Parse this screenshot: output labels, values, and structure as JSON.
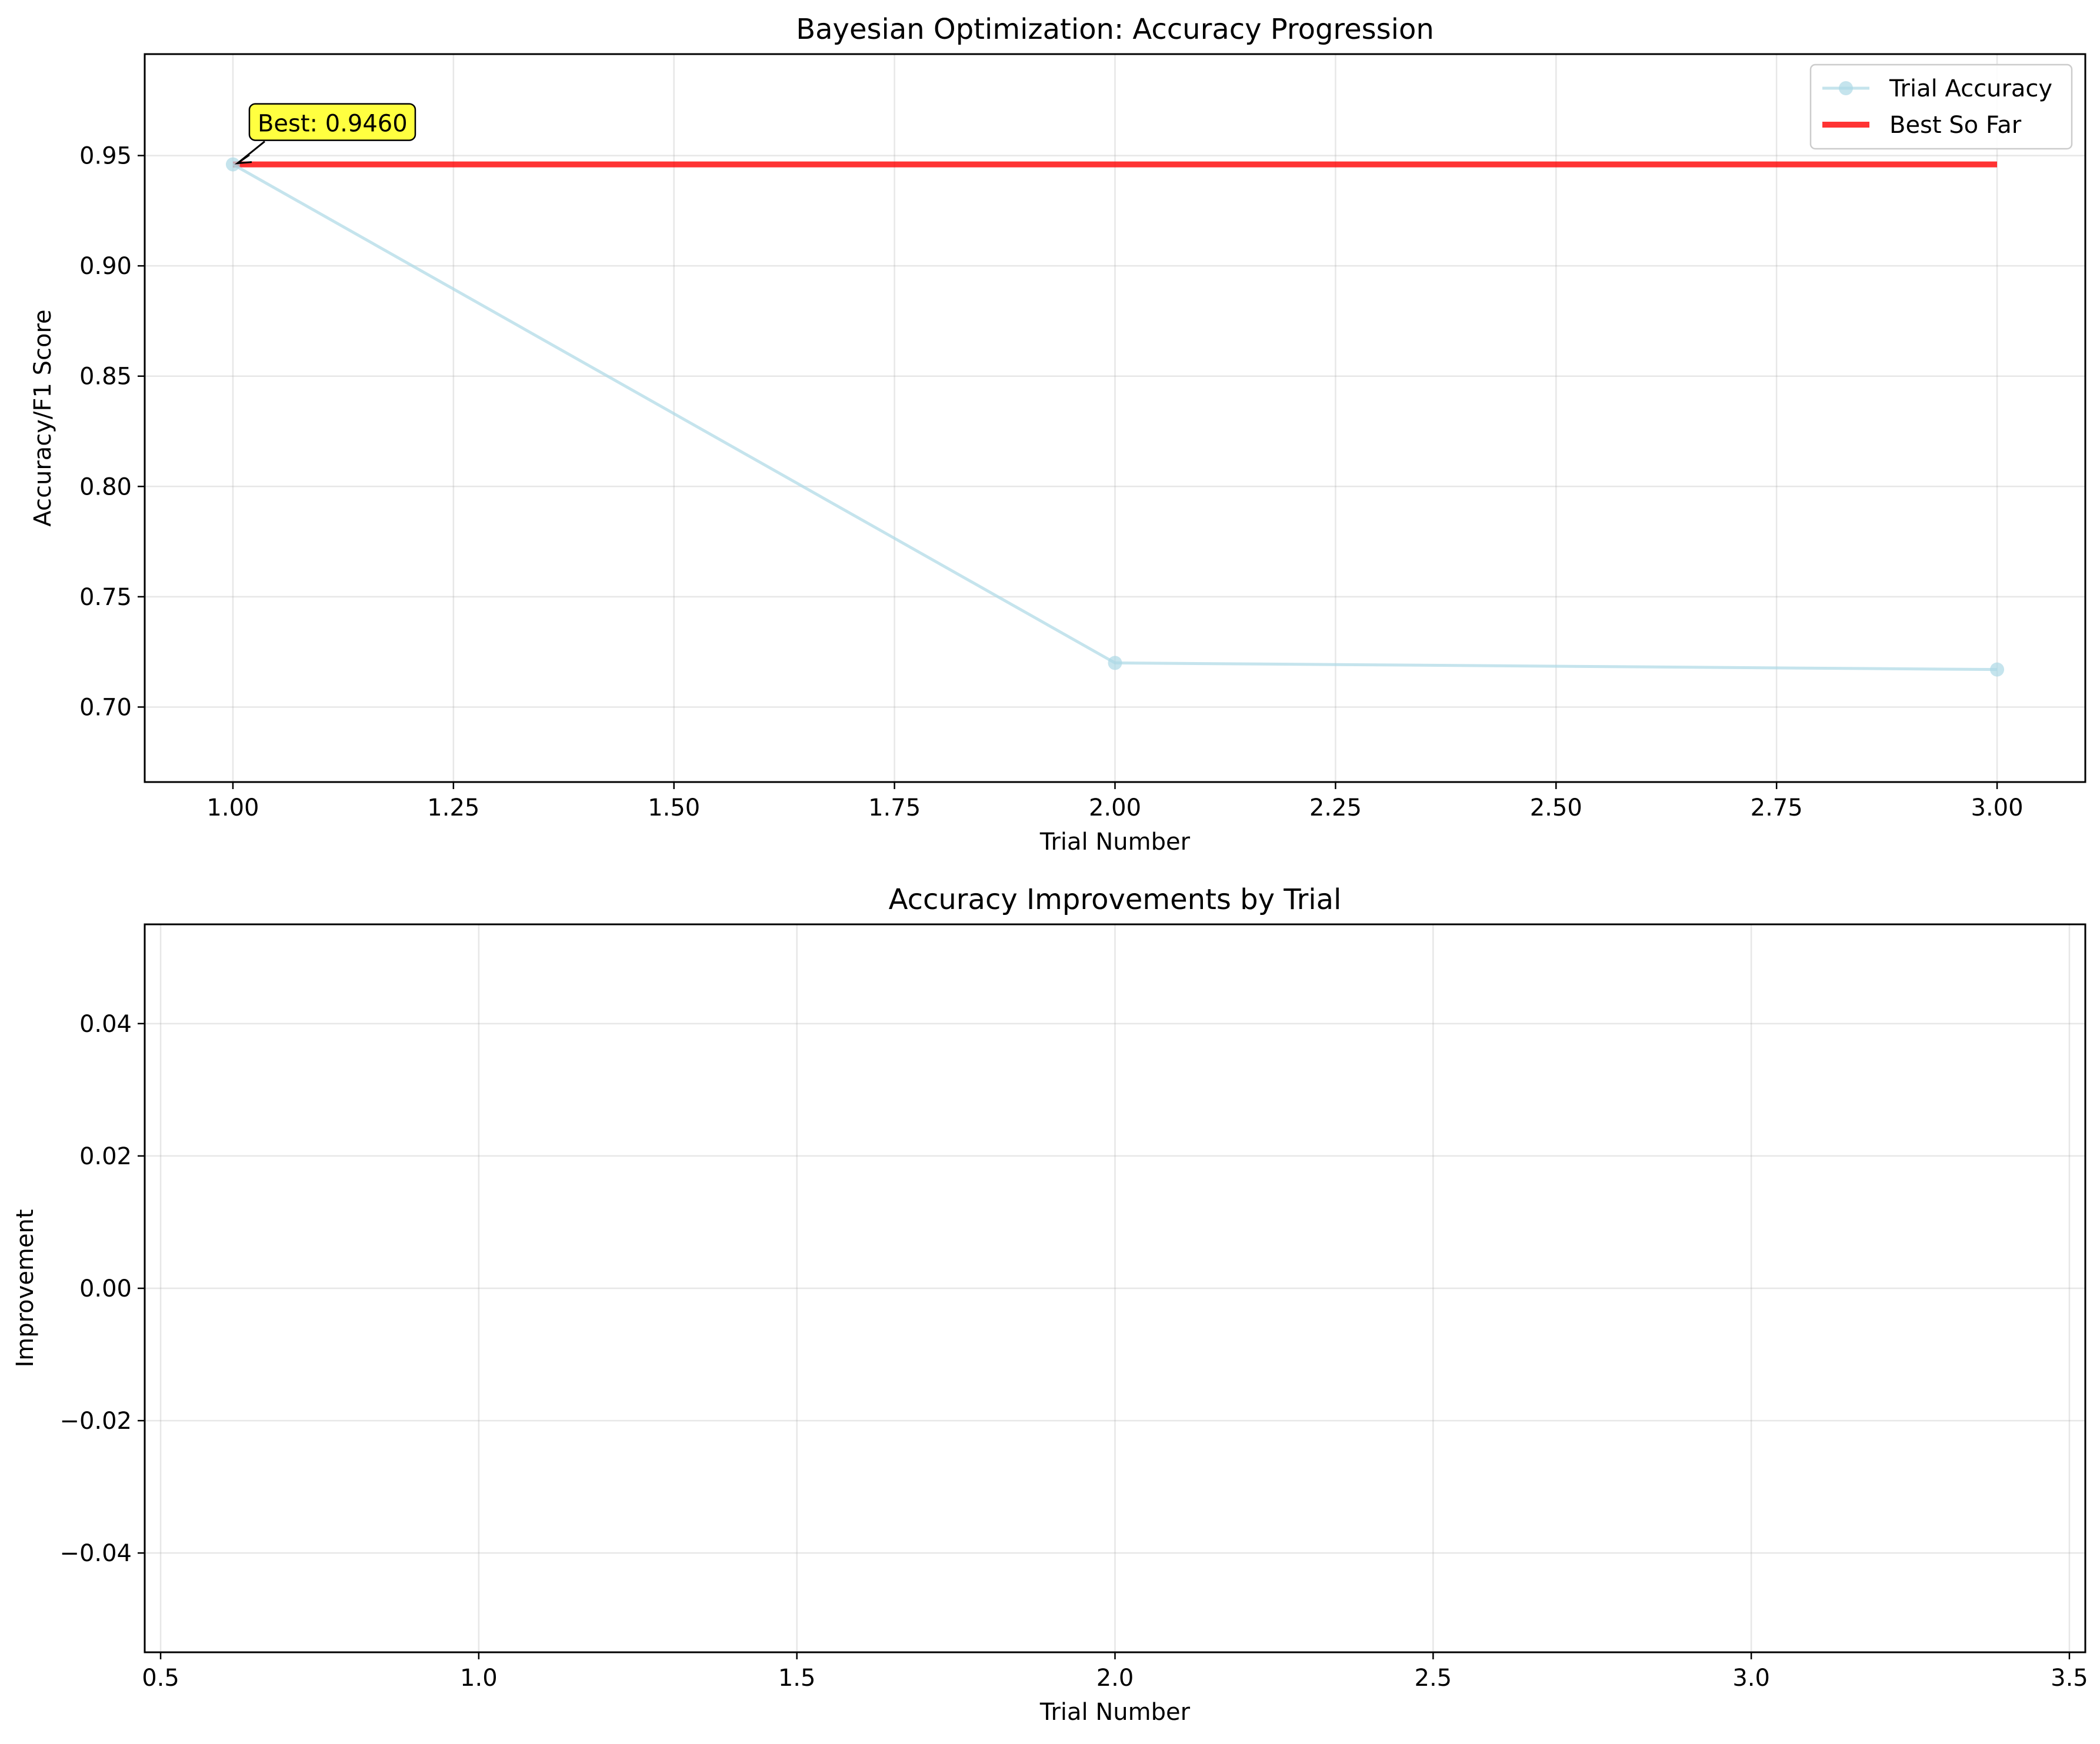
{
  "chart_data": [
    {
      "type": "line",
      "title": "Bayesian Optimization: Accuracy Progression",
      "xlabel": "Trial Number",
      "ylabel": "Accuracy/F1 Score",
      "xlim": [
        0.9,
        3.1
      ],
      "ylim": [
        0.666,
        0.996
      ],
      "xticks": [
        1.0,
        1.25,
        1.5,
        1.75,
        2.0,
        2.25,
        2.5,
        2.75,
        3.0
      ],
      "xtick_labels": [
        "1.00",
        "1.25",
        "1.50",
        "1.75",
        "2.00",
        "2.25",
        "2.50",
        "2.75",
        "3.00"
      ],
      "yticks": [
        0.7,
        0.75,
        0.8,
        0.85,
        0.9,
        0.95
      ],
      "ytick_labels": [
        "0.70",
        "0.75",
        "0.80",
        "0.85",
        "0.90",
        "0.95"
      ],
      "grid": true,
      "legend_position": "top-right",
      "series": [
        {
          "name": "Trial Accuracy",
          "color": "#add8e6",
          "marker": "circle",
          "x": [
            1,
            2,
            3
          ],
          "y": [
            0.946,
            0.72,
            0.717
          ]
        },
        {
          "name": "Best So Far",
          "color": "#ff0000",
          "x": [
            1,
            2,
            3
          ],
          "y": [
            0.946,
            0.946,
            0.946
          ]
        }
      ],
      "annotation": {
        "text": "Best: 0.9460",
        "x": 1,
        "y": 0.946,
        "color": "#ffff00"
      }
    },
    {
      "type": "bar",
      "title": "Accuracy Improvements by Trial",
      "xlabel": "Trial Number",
      "ylabel": "Improvement",
      "xlim": [
        0.475,
        3.525
      ],
      "ylim": [
        -0.055,
        0.055
      ],
      "xticks": [
        0.5,
        1.0,
        1.5,
        2.0,
        2.5,
        3.0,
        3.5
      ],
      "xtick_labels": [
        "0.5",
        "1.0",
        "1.5",
        "2.0",
        "2.5",
        "3.0",
        "3.5"
      ],
      "yticks": [
        -0.04,
        -0.02,
        0.0,
        0.02,
        0.04
      ],
      "ytick_labels": [
        "−0.04",
        "−0.02",
        "0.00",
        "0.02",
        "0.04"
      ],
      "grid": true,
      "values": []
    }
  ]
}
